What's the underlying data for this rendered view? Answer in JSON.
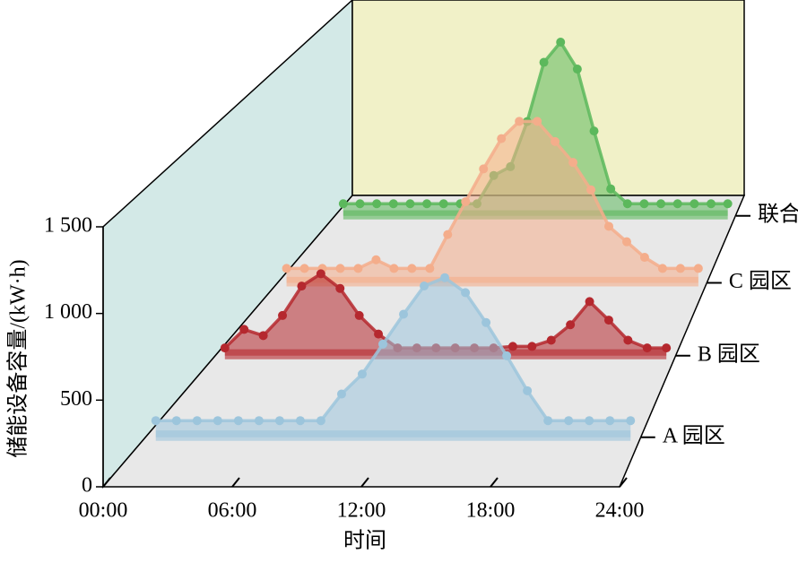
{
  "chart_data": {
    "type": "area3d",
    "xlabel": "时间",
    "ylabel": "储能设备容量/(kW·h)",
    "xlim": [
      0,
      24
    ],
    "xticks": [
      {
        "value": 0,
        "label": "00:00"
      },
      {
        "value": 6,
        "label": "06:00"
      },
      {
        "value": 12,
        "label": "12:00"
      },
      {
        "value": 18,
        "label": "18:00"
      },
      {
        "value": 24,
        "label": "24:00"
      }
    ],
    "ylim": [
      0,
      1500
    ],
    "yticks": [
      0,
      500,
      {
        "value": 1000,
        "label": "1 000"
      },
      {
        "value": 1500,
        "label": "1 500"
      }
    ],
    "x": [
      0,
      1,
      2,
      3,
      4,
      5,
      6,
      7,
      8,
      9,
      10,
      11,
      12,
      13,
      14,
      15,
      16,
      17,
      18,
      19,
      20,
      21,
      22,
      23
    ],
    "series": [
      {
        "name": "A 园区",
        "color": "#9cc5dc",
        "values": [
          100,
          100,
          100,
          100,
          100,
          100,
          100,
          100,
          100,
          260,
          380,
          560,
          740,
          910,
          960,
          870,
          690,
          490,
          280,
          100,
          100,
          100,
          100,
          100
        ]
      },
      {
        "name": "B 园区",
        "color": "#b5282e",
        "values": [
          50,
          170,
          130,
          260,
          450,
          530,
          435,
          260,
          140,
          50,
          50,
          50,
          50,
          50,
          50,
          60,
          60,
          100,
          200,
          350,
          230,
          100,
          50,
          50
        ]
      },
      {
        "name": "C 园区",
        "color": "#f4ad8b",
        "values": [
          100,
          100,
          100,
          100,
          100,
          160,
          100,
          100,
          100,
          335,
          563,
          790,
          1000,
          1120,
          1120,
          980,
          835,
          645,
          392,
          285,
          177,
          100,
          100,
          100
        ]
      },
      {
        "name": "联合",
        "color": "#5cb85c",
        "values": [
          90,
          90,
          90,
          90,
          90,
          90,
          90,
          90,
          90,
          300,
          365,
          700,
          1140,
          1290,
          1090,
          630,
          200,
          90,
          90,
          90,
          90,
          90,
          90,
          90
        ]
      }
    ]
  }
}
